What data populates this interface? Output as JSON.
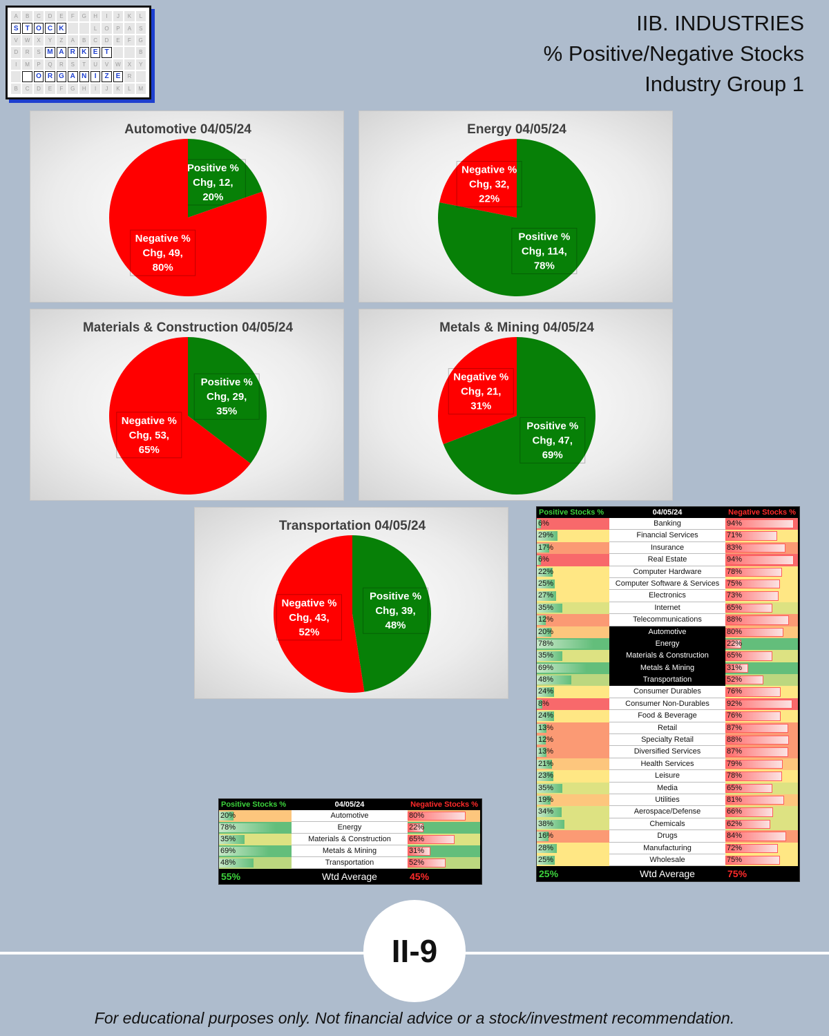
{
  "header": {
    "line1": "IIB. INDUSTRIES",
    "line2": "% Positive/Negative Stocks",
    "line3": "Industry Group 1"
  },
  "logo": {
    "rows": [
      "A B C D E F G H I J K L",
      "S T O C K   L O P A S M",
      "V W X Y Z A B C D E F G",
      "D R S M A R K E T   B H",
      "I M P Q R S T U V W X Y",
      "  O R G A N I Z E R   A",
      "B C D E F G H I J K L M"
    ],
    "word1": "STOCK",
    "word2": "MARKET",
    "word3": "ORGANIZER"
  },
  "colors": {
    "positive": "#078007",
    "negative": "#ff0000"
  },
  "chart_data": [
    {
      "type": "pie",
      "title": "Automotive 04/05/24",
      "slices": [
        {
          "label": "Positive % Chg",
          "value": 12,
          "pct": "20%"
        },
        {
          "label": "Negative % Chg",
          "value": 49,
          "pct": "80%"
        }
      ]
    },
    {
      "type": "pie",
      "title": "Energy 04/05/24",
      "slices": [
        {
          "label": "Positive % Chg",
          "value": 114,
          "pct": "78%"
        },
        {
          "label": "Negative % Chg",
          "value": 32,
          "pct": "22%"
        }
      ]
    },
    {
      "type": "pie",
      "title": "Materials & Construction 04/05/24",
      "slices": [
        {
          "label": "Positive % Chg",
          "value": 29,
          "pct": "35%"
        },
        {
          "label": "Negative % Chg",
          "value": 53,
          "pct": "65%"
        }
      ]
    },
    {
      "type": "pie",
      "title": "Metals & Mining 04/05/24",
      "slices": [
        {
          "label": "Positive % Chg",
          "value": 47,
          "pct": "69%"
        },
        {
          "label": "Negative % Chg",
          "value": 21,
          "pct": "31%"
        }
      ]
    },
    {
      "type": "pie",
      "title": "Transportation 04/05/24",
      "slices": [
        {
          "label": "Positive % Chg",
          "value": 39,
          "pct": "48%"
        },
        {
          "label": "Negative % Chg",
          "value": 43,
          "pct": "52%"
        }
      ]
    }
  ],
  "small_table": {
    "head_pos": "Positive Stocks %",
    "head_date": "04/05/24",
    "head_neg": "Negative Stocks %",
    "rows": [
      {
        "pos": "20%",
        "name": "Automotive",
        "neg": "80%"
      },
      {
        "pos": "78%",
        "name": "Energy",
        "neg": "22%"
      },
      {
        "pos": "35%",
        "name": "Materials & Construction",
        "neg": "65%"
      },
      {
        "pos": "69%",
        "name": "Metals & Mining",
        "neg": "31%"
      },
      {
        "pos": "48%",
        "name": "Transportation",
        "neg": "52%"
      }
    ],
    "foot_pos": "55%",
    "foot_label": "Wtd Average",
    "foot_neg": "45%"
  },
  "big_table": {
    "head_pos": "Positive Stocks %",
    "head_date": "04/05/24",
    "head_neg": "Negative Stocks %",
    "rows": [
      {
        "pos": "6%",
        "name": "Banking",
        "neg": "94%"
      },
      {
        "pos": "29%",
        "name": "Financial Services",
        "neg": "71%"
      },
      {
        "pos": "17%",
        "name": "Insurance",
        "neg": "83%"
      },
      {
        "pos": "6%",
        "name": "Real Estate",
        "neg": "94%"
      },
      {
        "pos": "22%",
        "name": "Computer Hardware",
        "neg": "78%"
      },
      {
        "pos": "25%",
        "name": "Computer Software & Services",
        "neg": "75%"
      },
      {
        "pos": "27%",
        "name": "Electronics",
        "neg": "73%"
      },
      {
        "pos": "35%",
        "name": "Internet",
        "neg": "65%"
      },
      {
        "pos": "12%",
        "name": "Telecommunications",
        "neg": "88%"
      },
      {
        "pos": "20%",
        "name": "Automotive",
        "neg": "80%",
        "hl": true
      },
      {
        "pos": "78%",
        "name": "Energy",
        "neg": "22%",
        "hl": true
      },
      {
        "pos": "35%",
        "name": "Materials & Construction",
        "neg": "65%",
        "hl": true
      },
      {
        "pos": "69%",
        "name": "Metals & Mining",
        "neg": "31%",
        "hl": true
      },
      {
        "pos": "48%",
        "name": "Transportation",
        "neg": "52%",
        "hl": true
      },
      {
        "pos": "24%",
        "name": "Consumer Durables",
        "neg": "76%"
      },
      {
        "pos": "8%",
        "name": "Consumer Non-Durables",
        "neg": "92%"
      },
      {
        "pos": "24%",
        "name": "Food & Beverage",
        "neg": "76%"
      },
      {
        "pos": "13%",
        "name": "Retail",
        "neg": "87%"
      },
      {
        "pos": "12%",
        "name": "Specialty Retail",
        "neg": "88%"
      },
      {
        "pos": "13%",
        "name": "Diversified Services",
        "neg": "87%"
      },
      {
        "pos": "21%",
        "name": "Health Services",
        "neg": "79%"
      },
      {
        "pos": "23%",
        "name": "Leisure",
        "neg": "78%"
      },
      {
        "pos": "35%",
        "name": "Media",
        "neg": "65%"
      },
      {
        "pos": "19%",
        "name": "Utilities",
        "neg": "81%"
      },
      {
        "pos": "34%",
        "name": "Aerospace/Defense",
        "neg": "66%"
      },
      {
        "pos": "38%",
        "name": "Chemicals",
        "neg": "62%"
      },
      {
        "pos": "16%",
        "name": "Drugs",
        "neg": "84%"
      },
      {
        "pos": "28%",
        "name": "Manufacturing",
        "neg": "72%"
      },
      {
        "pos": "25%",
        "name": "Wholesale",
        "neg": "75%"
      }
    ],
    "foot_pos": "25%",
    "foot_label": "Wtd Average",
    "foot_neg": "75%"
  },
  "page_badge": "II-9",
  "disclaimer": "For educational purposes only. Not financial advice or a stock/investment recommendation."
}
